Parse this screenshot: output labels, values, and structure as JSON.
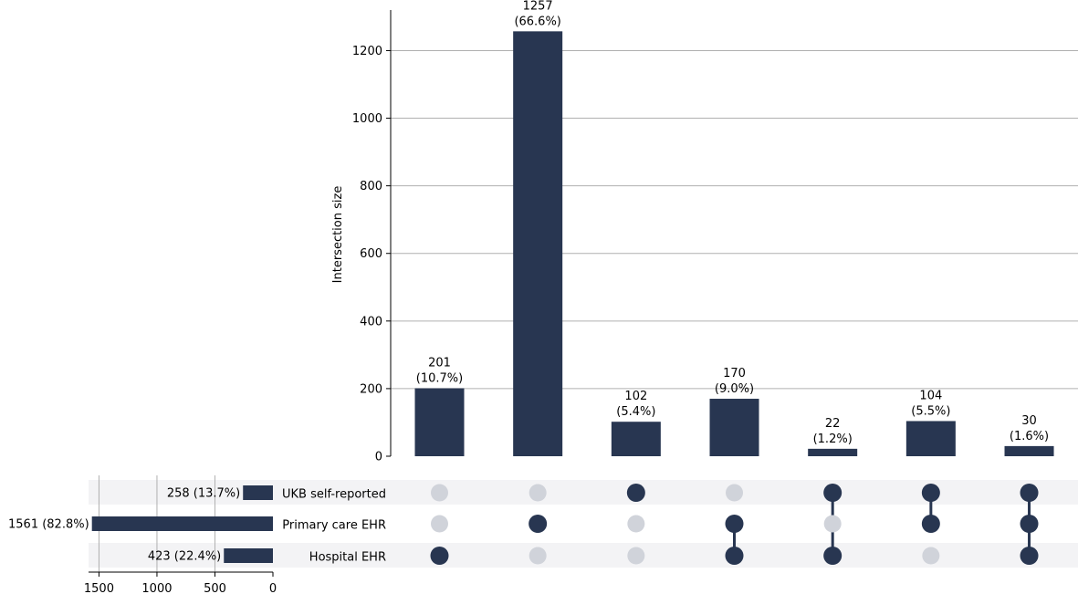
{
  "chart_data": {
    "type": "upset",
    "colors": {
      "bar": "#283651",
      "dot_active": "#283651",
      "dot_inactive": "#d0d3da",
      "stripe": "#f3f3f5",
      "grid": "#b0b0b0"
    },
    "intersections": {
      "ylabel": "Intersection size",
      "ylim": [
        0,
        1320
      ],
      "yticks": [
        0,
        200,
        400,
        600,
        800,
        1000,
        1200
      ],
      "grid": true,
      "items": [
        {
          "value": 201,
          "count_label": "201",
          "pct_label": "(10.7%)",
          "members": [
            false,
            false,
            true
          ]
        },
        {
          "value": 1257,
          "count_label": "1257",
          "pct_label": "(66.6%)",
          "members": [
            false,
            true,
            false
          ]
        },
        {
          "value": 102,
          "count_label": "102",
          "pct_label": "(5.4%)",
          "members": [
            true,
            false,
            false
          ]
        },
        {
          "value": 170,
          "count_label": "170",
          "pct_label": "(9.0%)",
          "members": [
            false,
            true,
            true
          ]
        },
        {
          "value": 22,
          "count_label": "22",
          "pct_label": "(1.2%)",
          "members": [
            true,
            false,
            true
          ]
        },
        {
          "value": 104,
          "count_label": "104",
          "pct_label": "(5.5%)",
          "members": [
            true,
            true,
            false
          ]
        },
        {
          "value": 30,
          "count_label": "30",
          "pct_label": "(1.6%)",
          "members": [
            true,
            true,
            true
          ]
        }
      ]
    },
    "sets": {
      "xlim": [
        0,
        1590
      ],
      "xticks": [
        1500,
        1000,
        500,
        0
      ],
      "grid": true,
      "items": [
        {
          "name": "UKB self-reported",
          "value": 258,
          "label": "258 (13.7%)"
        },
        {
          "name": "Primary care EHR",
          "value": 1561,
          "label": "1561 (82.8%)"
        },
        {
          "name": "Hospital EHR",
          "value": 423,
          "label": "423 (22.4%)"
        }
      ]
    }
  }
}
